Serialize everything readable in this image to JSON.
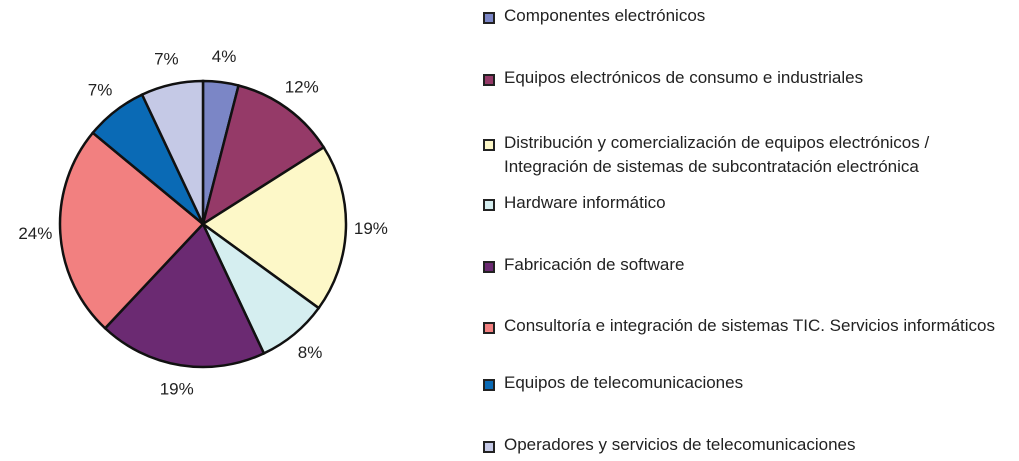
{
  "chart_data": {
    "type": "pie",
    "categories": [
      "Componentes electrónicos",
      "Equipos electrónicos de consumo e industriales",
      "Distribución y comercialización de equipos electrónicos / Integración de sistemas de subcontratación electrónica",
      "Hardware informático",
      "Fabricación de software",
      "Consultoría e integración de sistemas TIC. Servicios informáticos",
      "Equipos de telecomunicaciones",
      "Operadores y servicios de telecomunicaciones"
    ],
    "values": [
      4,
      12,
      19,
      8,
      19,
      24,
      7,
      7
    ],
    "value_labels": [
      "4%",
      "12%",
      "19%",
      "8%",
      "19%",
      "24%",
      "7%",
      "7%"
    ],
    "colors": [
      "#7b86c6",
      "#953a68",
      "#fdf8c8",
      "#d5eef0",
      "#6b2a72",
      "#f28080",
      "#0a6ab5",
      "#c5c9e6"
    ],
    "legend": "right"
  }
}
